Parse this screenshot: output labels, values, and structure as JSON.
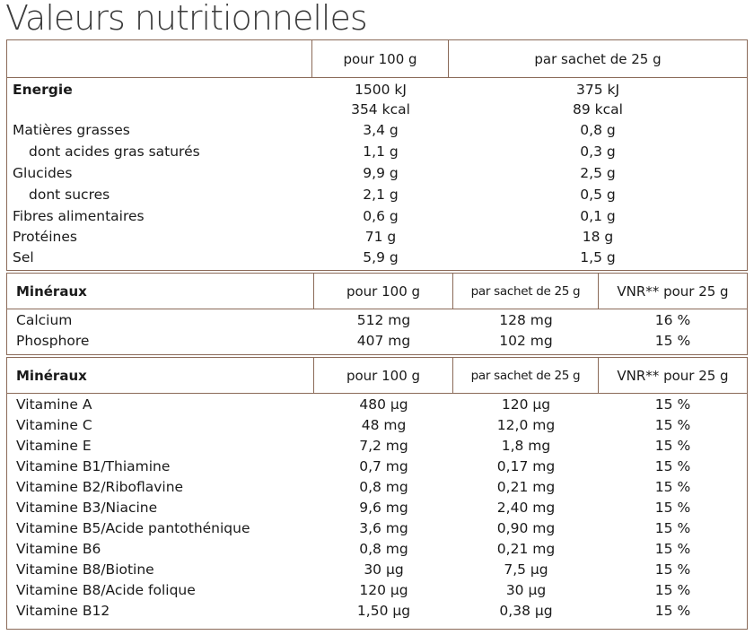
{
  "title": "Valeurs nutritionnelles",
  "nutrition": {
    "col1": "pour 100 g",
    "col2": "par sachet de 25 g",
    "rows": [
      {
        "label": "Energie",
        "v1": "1500 kJ",
        "v2": "375 kJ"
      },
      {
        "label": "",
        "v1": "354 kcal",
        "v2": "89 kcal"
      },
      {
        "label": "Matières grasses",
        "v1": "3,4 g",
        "v2": "0,8 g"
      },
      {
        "label": "dont acides gras saturés",
        "v1": "1,1 g",
        "v2": "0,3 g"
      },
      {
        "label": "Glucides",
        "v1": "9,9 g",
        "v2": "2,5 g"
      },
      {
        "label": "dont sucres",
        "v1": "2,1 g",
        "v2": "0,5 g"
      },
      {
        "label": "Fibres alimentaires",
        "v1": "0,6 g",
        "v2": "0,1 g"
      },
      {
        "label": "Protéines",
        "v1": "71 g",
        "v2": "18 g"
      },
      {
        "label": "Sel",
        "v1": "5,9 g",
        "v2": "1,5 g"
      }
    ]
  },
  "minerals": {
    "header": "Minéraux",
    "col1": "pour 100 g",
    "col2": "par sachet de 25 g",
    "col3": "VNR** pour 25 g",
    "rows": [
      {
        "label": "Calcium",
        "c1": "512 mg",
        "c2": "128 mg",
        "c3": "16 %"
      },
      {
        "label": "Phosphore",
        "c1": "407 mg",
        "c2": "102 mg",
        "c3": "15 %"
      }
    ]
  },
  "vitamins": {
    "header": "Minéraux",
    "col1": "pour 100 g",
    "col2": "par sachet de 25 g",
    "col3": "VNR** pour 25 g",
    "rows": [
      {
        "label": "Vitamine A",
        "c1": "480 µg",
        "c2": "120 µg",
        "c3": "15 %"
      },
      {
        "label": "Vitamine C",
        "c1": "48 mg",
        "c2": "12,0 mg",
        "c3": "15 %"
      },
      {
        "label": "Vitamine E",
        "c1": "7,2 mg",
        "c2": "1,8 mg",
        "c3": "15 %"
      },
      {
        "label": "Vitamine B1/Thiamine",
        "c1": "0,7 mg",
        "c2": "0,17 mg",
        "c3": "15 %"
      },
      {
        "label": "Vitamine B2/Riboflavine",
        "c1": "0,8 mg",
        "c2": "0,21 mg",
        "c3": "15 %"
      },
      {
        "label": "Vitamine B3/Niacine",
        "c1": "9,6 mg",
        "c2": "2,40 mg",
        "c3": "15 %"
      },
      {
        "label": "Vitamine B5/Acide pantothénique",
        "c1": "3,6 mg",
        "c2": "0,90 mg",
        "c3": "15 %"
      },
      {
        "label": "Vitamine B6",
        "c1": "0,8 mg",
        "c2": "0,21 mg",
        "c3": "15 %"
      },
      {
        "label": "Vitamine B8/Biotine",
        "c1": "30 µg",
        "c2": "7,5 µg",
        "c3": "15 %"
      },
      {
        "label": "Vitamine B8/Acide folique",
        "c1": "120 µg",
        "c2": "30 µg",
        "c3": "15 %"
      },
      {
        "label": "Vitamine B12",
        "c1": "1,50 µg",
        "c2": "0,38 µg",
        "c3": "15 %"
      }
    ]
  }
}
